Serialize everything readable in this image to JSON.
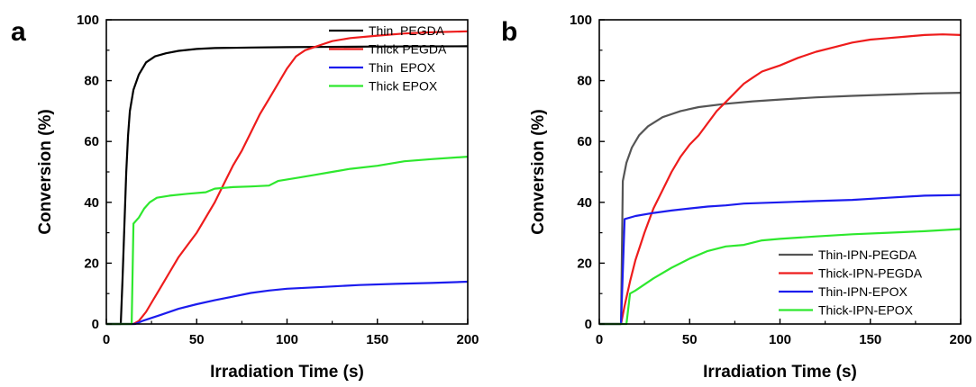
{
  "chart_data": [
    {
      "panel_label": "a",
      "type": "line",
      "xlabel": "Irradiation Time (s)",
      "ylabel": "Conversion (%)",
      "xlim": [
        0,
        200
      ],
      "ylim": [
        0,
        100
      ],
      "xticks": [
        "0",
        "50",
        "100",
        "150",
        "200"
      ],
      "yticks": [
        "0",
        "20",
        "40",
        "60",
        "80",
        "100"
      ],
      "grid": false,
      "legend_position": "top-right",
      "series": [
        {
          "name": "Thin  PEGDA",
          "color": "#000000",
          "points": [
            [
              0,
              0
            ],
            [
              8,
              0
            ],
            [
              9,
              15
            ],
            [
              10,
              33
            ],
            [
              11,
              50
            ],
            [
              12,
              62
            ],
            [
              13,
              70
            ],
            [
              15,
              77
            ],
            [
              18,
              82
            ],
            [
              22,
              86
            ],
            [
              27,
              88
            ],
            [
              33,
              89
            ],
            [
              40,
              89.8
            ],
            [
              50,
              90.4
            ],
            [
              60,
              90.7
            ],
            [
              80,
              90.9
            ],
            [
              100,
              91.0
            ],
            [
              150,
              91.2
            ],
            [
              200,
              91.3
            ]
          ]
        },
        {
          "name": "Thick PEGDA",
          "color": "#ee1c1c",
          "points": [
            [
              0,
              0
            ],
            [
              15,
              0
            ],
            [
              18,
              1
            ],
            [
              22,
              4
            ],
            [
              26,
              8
            ],
            [
              30,
              12
            ],
            [
              35,
              17
            ],
            [
              40,
              22
            ],
            [
              45,
              26
            ],
            [
              50,
              30
            ],
            [
              55,
              35
            ],
            [
              60,
              40
            ],
            [
              65,
              46
            ],
            [
              70,
              52
            ],
            [
              75,
              57
            ],
            [
              80,
              63
            ],
            [
              85,
              69
            ],
            [
              90,
              74
            ],
            [
              95,
              79
            ],
            [
              100,
              84
            ],
            [
              105,
              88
            ],
            [
              110,
              90
            ],
            [
              115,
              91
            ],
            [
              120,
              92
            ],
            [
              125,
              93
            ],
            [
              135,
              94
            ],
            [
              150,
              94.8
            ],
            [
              165,
              95.5
            ],
            [
              180,
              95.9
            ],
            [
              200,
              96.2
            ]
          ]
        },
        {
          "name": "Thin  EPOX",
          "color": "#1c1cee",
          "points": [
            [
              0,
              0
            ],
            [
              16,
              0
            ],
            [
              20,
              1
            ],
            [
              30,
              3
            ],
            [
              40,
              5
            ],
            [
              50,
              6.5
            ],
            [
              60,
              7.8
            ],
            [
              70,
              9
            ],
            [
              80,
              10.2
            ],
            [
              90,
              11
            ],
            [
              100,
              11.6
            ],
            [
              120,
              12.2
            ],
            [
              140,
              12.8
            ],
            [
              160,
              13.2
            ],
            [
              180,
              13.5
            ],
            [
              200,
              13.9
            ]
          ]
        },
        {
          "name": "Thick EPOX",
          "color": "#2ee82e",
          "points": [
            [
              0,
              0
            ],
            [
              14,
              0
            ],
            [
              15,
              33
            ],
            [
              18,
              35
            ],
            [
              21,
              38
            ],
            [
              24,
              40
            ],
            [
              28,
              41.5
            ],
            [
              35,
              42.2
            ],
            [
              45,
              42.8
            ],
            [
              55,
              43.3
            ],
            [
              60,
              44.5
            ],
            [
              70,
              45
            ],
            [
              80,
              45.2
            ],
            [
              90,
              45.5
            ],
            [
              95,
              47
            ],
            [
              105,
              48
            ],
            [
              115,
              49
            ],
            [
              125,
              50
            ],
            [
              135,
              51
            ],
            [
              150,
              52
            ],
            [
              165,
              53.5
            ],
            [
              180,
              54.2
            ],
            [
              200,
              55
            ]
          ]
        }
      ]
    },
    {
      "panel_label": "b",
      "type": "line",
      "xlabel": "Irradiation Time (s)",
      "ylabel": "Conversion (%)",
      "xlim": [
        0,
        200
      ],
      "ylim": [
        0,
        100
      ],
      "xticks": [
        "0",
        "50",
        "100",
        "150",
        "200"
      ],
      "yticks": [
        "0",
        "20",
        "40",
        "60",
        "80",
        "100"
      ],
      "grid": false,
      "legend_position": "bottom-right",
      "series": [
        {
          "name": "Thin-IPN-PEGDA",
          "color": "#555555",
          "points": [
            [
              0,
              0
            ],
            [
              12,
              0
            ],
            [
              13,
              47
            ],
            [
              15,
              53
            ],
            [
              18,
              58
            ],
            [
              22,
              62
            ],
            [
              27,
              65
            ],
            [
              35,
              68
            ],
            [
              45,
              70
            ],
            [
              55,
              71.3
            ],
            [
              70,
              72.4
            ],
            [
              85,
              73.2
            ],
            [
              100,
              73.8
            ],
            [
              120,
              74.5
            ],
            [
              140,
              75
            ],
            [
              160,
              75.4
            ],
            [
              180,
              75.8
            ],
            [
              200,
              76
            ]
          ]
        },
        {
          "name": "Thick-IPN-PEGDA",
          "color": "#ee1c1c",
          "points": [
            [
              0,
              0
            ],
            [
              12,
              0
            ],
            [
              14,
              6
            ],
            [
              17,
              14
            ],
            [
              20,
              21
            ],
            [
              25,
              30
            ],
            [
              30,
              38
            ],
            [
              35,
              44
            ],
            [
              40,
              50
            ],
            [
              45,
              55
            ],
            [
              50,
              59
            ],
            [
              55,
              62
            ],
            [
              60,
              66
            ],
            [
              65,
              70
            ],
            [
              70,
              73
            ],
            [
              75,
              76
            ],
            [
              80,
              79
            ],
            [
              85,
              81
            ],
            [
              90,
              83
            ],
            [
              95,
              84
            ],
            [
              100,
              85
            ],
            [
              110,
              87.5
            ],
            [
              120,
              89.5
            ],
            [
              130,
              91
            ],
            [
              140,
              92.5
            ],
            [
              150,
              93.5
            ],
            [
              160,
              94
            ],
            [
              170,
              94.5
            ],
            [
              180,
              95
            ],
            [
              190,
              95.2
            ],
            [
              200,
              95
            ]
          ]
        },
        {
          "name": "Thin-IPN-EPOX",
          "color": "#1c1cee",
          "points": [
            [
              0,
              0
            ],
            [
              12,
              0
            ],
            [
              14,
              34.5
            ],
            [
              20,
              35.5
            ],
            [
              30,
              36.5
            ],
            [
              40,
              37.3
            ],
            [
              50,
              38
            ],
            [
              60,
              38.6
            ],
            [
              70,
              39
            ],
            [
              75,
              39.3
            ],
            [
              80,
              39.6
            ],
            [
              100,
              40
            ],
            [
              120,
              40.4
            ],
            [
              140,
              40.8
            ],
            [
              160,
              41.5
            ],
            [
              180,
              42.2
            ],
            [
              200,
              42.4
            ]
          ]
        },
        {
          "name": "Thick-IPN-EPOX",
          "color": "#2ee82e",
          "points": [
            [
              0,
              0
            ],
            [
              15,
              0
            ],
            [
              17,
              10
            ],
            [
              20,
              11
            ],
            [
              30,
              15
            ],
            [
              40,
              18.5
            ],
            [
              50,
              21.5
            ],
            [
              60,
              24
            ],
            [
              70,
              25.5
            ],
            [
              80,
              26
            ],
            [
              90,
              27.5
            ],
            [
              100,
              28
            ],
            [
              120,
              28.8
            ],
            [
              140,
              29.5
            ],
            [
              160,
              30
            ],
            [
              180,
              30.5
            ],
            [
              200,
              31.2
            ]
          ]
        }
      ]
    }
  ]
}
